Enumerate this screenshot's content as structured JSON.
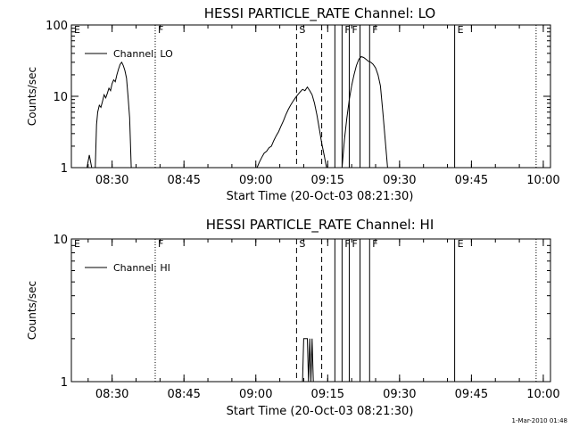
{
  "figure": {
    "footer_stamp": "1-Mar-2010 01:48"
  },
  "chart_data": [
    {
      "type": "line",
      "title": "HESSI PARTICLE_RATE Channel: LO",
      "xlabel": "Start Time (20-Oct-03 08:21:30)",
      "ylabel": "Counts/sec",
      "xlim": [
        "08:21:30",
        "10:01:30"
      ],
      "ylim": [
        1,
        100
      ],
      "y_scale": "log",
      "x_ticks": [
        "08:30",
        "08:45",
        "09:00",
        "09:15",
        "09:30",
        "09:45",
        "10:00"
      ],
      "y_ticks": [
        "1",
        "10",
        "100"
      ],
      "legend": {
        "placement": "top-left",
        "entries": [
          "Channel: LO"
        ]
      },
      "grid": false,
      "markers": [
        {
          "label": "E",
          "time": "08:21:30",
          "style": "dotted"
        },
        {
          "label": "F",
          "time": "08:39:00",
          "style": "dotted"
        },
        {
          "label": "S",
          "time": "09:08:30",
          "style": "dashed"
        },
        {
          "label": "",
          "time": "09:13:45",
          "style": "dashed"
        },
        {
          "label": "",
          "time": "09:16:30",
          "style": "solid"
        },
        {
          "label": "F",
          "time": "09:18:00",
          "style": "solid"
        },
        {
          "label": "F",
          "time": "09:19:30",
          "style": "solid"
        },
        {
          "label": "",
          "time": "09:21:45",
          "style": "solid"
        },
        {
          "label": "F",
          "time": "09:23:45",
          "style": "solid"
        },
        {
          "label": "E",
          "time": "09:41:30",
          "style": "solid"
        },
        {
          "label": "",
          "time": "09:58:30",
          "style": "dotted"
        }
      ],
      "series": [
        {
          "name": "Channel: LO",
          "segments": [
            [
              [
                "08:24:45",
                1.0
              ],
              [
                "08:25:15",
                1.5
              ],
              [
                "08:25:45",
                1.0
              ],
              [
                "08:26:30",
                1.0
              ],
              [
                "08:26:45",
                4.0
              ],
              [
                "08:27:00",
                6.0
              ],
              [
                "08:27:20",
                7.5
              ],
              [
                "08:27:40",
                7.0
              ],
              [
                "08:28:00",
                8.5
              ],
              [
                "08:28:20",
                10.5
              ],
              [
                "08:28:40",
                9.5
              ],
              [
                "08:29:00",
                11.0
              ],
              [
                "08:29:20",
                13.0
              ],
              [
                "08:29:40",
                12.0
              ],
              [
                "08:30:00",
                15.0
              ],
              [
                "08:30:20",
                17.0
              ],
              [
                "08:30:40",
                16.0
              ],
              [
                "08:31:00",
                20.0
              ],
              [
                "08:31:20",
                24.0
              ],
              [
                "08:31:40",
                28.0
              ],
              [
                "08:32:00",
                30.0
              ],
              [
                "08:32:20",
                27.0
              ],
              [
                "08:32:40",
                23.0
              ],
              [
                "08:33:00",
                18.0
              ],
              [
                "08:33:20",
                10.0
              ],
              [
                "08:33:40",
                5.0
              ],
              [
                "08:34:00",
                1.0
              ]
            ],
            [
              [
                "09:00:15",
                1.0
              ],
              [
                "09:00:45",
                1.2
              ],
              [
                "09:01:15",
                1.4
              ],
              [
                "09:01:45",
                1.6
              ],
              [
                "09:02:15",
                1.7
              ],
              [
                "09:02:45",
                1.9
              ],
              [
                "09:03:15",
                2.0
              ],
              [
                "09:03:45",
                2.4
              ],
              [
                "09:04:15",
                2.8
              ],
              [
                "09:04:45",
                3.2
              ],
              [
                "09:05:15",
                3.8
              ],
              [
                "09:05:45",
                4.5
              ],
              [
                "09:06:15",
                5.5
              ],
              [
                "09:06:45",
                6.5
              ],
              [
                "09:07:15",
                7.5
              ],
              [
                "09:07:45",
                8.5
              ],
              [
                "09:08:15",
                9.5
              ],
              [
                "09:08:45",
                10.5
              ],
              [
                "09:09:15",
                11.5
              ],
              [
                "09:09:45",
                12.5
              ],
              [
                "09:10:15",
                12.0
              ],
              [
                "09:10:45",
                13.5
              ],
              [
                "09:11:15",
                12.0
              ],
              [
                "09:11:45",
                10.5
              ],
              [
                "09:12:15",
                8.0
              ],
              [
                "09:12:45",
                5.5
              ],
              [
                "09:13:15",
                3.5
              ],
              [
                "09:13:45",
                2.2
              ],
              [
                "09:14:15",
                1.5
              ],
              [
                "09:14:45",
                1.0
              ]
            ],
            [
              [
                "09:18:00",
                1.0
              ],
              [
                "09:18:30",
                2.5
              ],
              [
                "09:19:00",
                5.0
              ],
              [
                "09:19:30",
                9.0
              ],
              [
                "09:20:00",
                14.0
              ],
              [
                "09:20:30",
                20.0
              ],
              [
                "09:21:00",
                27.0
              ],
              [
                "09:21:30",
                33.0
              ],
              [
                "09:22:00",
                36.0
              ],
              [
                "09:22:30",
                35.0
              ],
              [
                "09:23:00",
                33.0
              ],
              [
                "09:23:30",
                31.0
              ],
              [
                "09:24:00",
                30.0
              ],
              [
                "09:24:30",
                28.0
              ],
              [
                "09:25:00",
                25.0
              ],
              [
                "09:25:30",
                20.0
              ],
              [
                "09:26:00",
                14.0
              ],
              [
                "09:26:30",
                6.0
              ],
              [
                "09:27:00",
                2.5
              ],
              [
                "09:27:30",
                1.0
              ]
            ]
          ]
        }
      ]
    },
    {
      "type": "line",
      "title": "HESSI PARTICLE_RATE Channel: HI",
      "xlabel": "Start Time (20-Oct-03 08:21:30)",
      "ylabel": "Counts/sec",
      "xlim": [
        "08:21:30",
        "10:01:30"
      ],
      "ylim": [
        1,
        10
      ],
      "y_scale": "log",
      "x_ticks": [
        "08:30",
        "08:45",
        "09:00",
        "09:15",
        "09:30",
        "09:45",
        "10:00"
      ],
      "y_ticks": [
        "1",
        "10"
      ],
      "legend": {
        "placement": "top-left",
        "entries": [
          "Channel: HI"
        ]
      },
      "grid": false,
      "markers": [
        {
          "label": "E",
          "time": "08:21:30",
          "style": "dotted"
        },
        {
          "label": "F",
          "time": "08:39:00",
          "style": "dotted"
        },
        {
          "label": "S",
          "time": "09:08:30",
          "style": "dashed"
        },
        {
          "label": "",
          "time": "09:13:45",
          "style": "dashed"
        },
        {
          "label": "",
          "time": "09:16:30",
          "style": "solid"
        },
        {
          "label": "F",
          "time": "09:18:00",
          "style": "solid"
        },
        {
          "label": "F",
          "time": "09:19:30",
          "style": "solid"
        },
        {
          "label": "",
          "time": "09:21:45",
          "style": "solid"
        },
        {
          "label": "F",
          "time": "09:23:45",
          "style": "solid"
        },
        {
          "label": "E",
          "time": "09:41:30",
          "style": "solid"
        },
        {
          "label": "",
          "time": "09:58:30",
          "style": "dotted"
        }
      ],
      "series": [
        {
          "name": "Channel: HI",
          "segments": [
            [
              [
                "09:09:45",
                1.0
              ],
              [
                "09:10:00",
                2.0
              ],
              [
                "09:10:45",
                2.0
              ],
              [
                "09:11:00",
                1.0
              ],
              [
                "09:11:15",
                2.0
              ],
              [
                "09:11:30",
                1.0
              ],
              [
                "09:11:45",
                2.0
              ],
              [
                "09:12:00",
                1.0
              ]
            ]
          ]
        }
      ]
    }
  ]
}
